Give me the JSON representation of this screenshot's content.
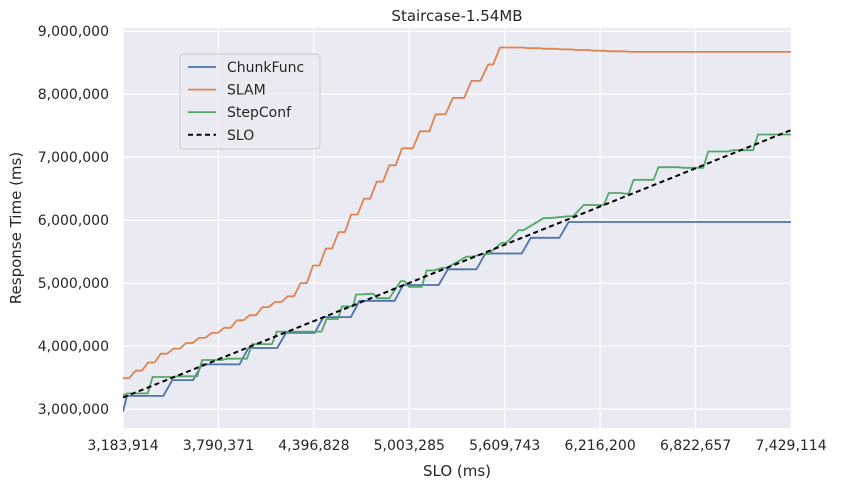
{
  "chart_data": {
    "type": "line",
    "title": "Staircase-1.54MB",
    "xlabel": "SLO (ms)",
    "ylabel": "Response Time (ms)",
    "xlim": [
      3183914,
      7429114
    ],
    "ylim": [
      2700000,
      9050000
    ],
    "x_ticks": [
      3183914,
      3790371,
      4396828,
      5003285,
      5609743,
      6216200,
      6822657,
      7429114
    ],
    "x_tick_labels": [
      "3,183,914",
      "3,790,371",
      "4,396,828",
      "5,003,285",
      "5,609,743",
      "6,216,200",
      "6,822,657",
      "7,429,114"
    ],
    "y_ticks": [
      3000000,
      4000000,
      5000000,
      6000000,
      7000000,
      8000000,
      9000000
    ],
    "y_tick_labels": [
      "3,000,000",
      "4,000,000",
      "5,000,000",
      "6,000,000",
      "7,000,000",
      "8,000,000",
      "9,000,000"
    ],
    "grid": true,
    "legend_position": "upper-left",
    "series": [
      {
        "name": "ChunkFunc",
        "color": "#4c72b0",
        "style": "solid",
        "x": [
          3183914,
          3209000,
          3440000,
          3497000,
          3630000,
          3686000,
          3924000,
          3981000,
          4163000,
          4220000,
          4402000,
          4457000,
          4632000,
          4687000,
          4910000,
          4964000,
          5190000,
          5248000,
          5430000,
          5487000,
          5718000,
          5775000,
          5957000,
          6016000,
          7429114
        ],
        "y": [
          2960000,
          3210000,
          3210000,
          3460000,
          3460000,
          3710000,
          3710000,
          3970000,
          3970000,
          4210000,
          4210000,
          4460000,
          4460000,
          4720000,
          4720000,
          4970000,
          4970000,
          5220000,
          5220000,
          5470000,
          5470000,
          5720000,
          5720000,
          5970000,
          5970000
        ]
      },
      {
        "name": "SLAM",
        "color": "#dd8452",
        "style": "solid",
        "x": [
          3183914,
          3223000,
          3264000,
          3304000,
          3344000,
          3384000,
          3424000,
          3465000,
          3505000,
          3545000,
          3586000,
          3626000,
          3666000,
          3707000,
          3747000,
          3787000,
          3828000,
          3868000,
          3908000,
          3949000,
          3989000,
          4029000,
          4070000,
          4110000,
          4150000,
          4191000,
          4231000,
          4271000,
          4312000,
          4352000,
          4392000,
          4433000,
          4473000,
          4513000,
          4554000,
          4594000,
          4634000,
          4675000,
          4715000,
          4755000,
          4796000,
          4836000,
          4876000,
          4917000,
          4957000,
          5026000,
          5070000,
          5131000,
          5171000,
          5234000,
          5280000,
          5352000,
          5398000,
          5455000,
          5505000,
          5536000,
          5580000,
          5617000,
          5661000,
          5721000,
          5760000,
          5827000,
          5871000,
          5929000,
          5971000,
          6029000,
          6074000,
          6134000,
          6177000,
          6234000,
          6279000,
          6325000,
          6369000,
          6412000,
          6457000,
          6515000,
          6541000,
          6594000,
          6622000,
          6644000,
          6701000,
          6792000,
          6906000,
          7012000,
          7127000,
          7210000,
          7307000,
          7429114
        ],
        "y": [
          3490000,
          3490000,
          3610000,
          3610000,
          3740000,
          3740000,
          3880000,
          3880000,
          3960000,
          3960000,
          4050000,
          4050000,
          4130000,
          4130000,
          4210000,
          4210000,
          4290000,
          4290000,
          4410000,
          4410000,
          4490000,
          4490000,
          4620000,
          4620000,
          4700000,
          4700000,
          4790000,
          4790000,
          5000000,
          5000000,
          5280000,
          5280000,
          5550000,
          5550000,
          5810000,
          5810000,
          6090000,
          6090000,
          6340000,
          6340000,
          6610000,
          6610000,
          6870000,
          6870000,
          7140000,
          7140000,
          7410000,
          7410000,
          7680000,
          7680000,
          7940000,
          7940000,
          8210000,
          8210000,
          8470000,
          8470000,
          8740000,
          8740000,
          8740000,
          8740000,
          8730000,
          8730000,
          8720000,
          8720000,
          8710000,
          8710000,
          8700000,
          8700000,
          8690000,
          8690000,
          8680000,
          8680000,
          8680000,
          8670000,
          8670000,
          8670000,
          8670000,
          8670000,
          8670000,
          8670000,
          8670000,
          8670000,
          8670000,
          8670000,
          8670000,
          8670000,
          8670000,
          8670000
        ]
      },
      {
        "name": "StepConf",
        "color": "#55a868",
        "style": "solid",
        "x": [
          3183914,
          3213000,
          3341000,
          3372000,
          3498000,
          3529000,
          3656000,
          3687000,
          3814000,
          3845000,
          3972000,
          4003000,
          4130000,
          4161000,
          4288000,
          4319000,
          4446000,
          4477000,
          4550000,
          4575000,
          4646000,
          4665000,
          4686000,
          4759000,
          4776000,
          4797000,
          4876000,
          4949000,
          4972000,
          5003000,
          5082000,
          5113000,
          5160000,
          5208000,
          5239000,
          5366000,
          5397000,
          5474000,
          5505000,
          5590000,
          5621000,
          5698000,
          5729000,
          5856000,
          5887000,
          6014000,
          6045000,
          6112000,
          6133000,
          6161000,
          6240000,
          6271000,
          6350000,
          6374000,
          6398000,
          6429000,
          6556000,
          6587000,
          6714000,
          6745000,
          6872000,
          6903000,
          7030000,
          7061000,
          7188000,
          7219000,
          7346000,
          7429114
        ],
        "y": [
          3220000,
          3250000,
          3250000,
          3510000,
          3510000,
          3520000,
          3520000,
          3780000,
          3780000,
          3800000,
          3800000,
          4030000,
          4030000,
          4230000,
          4230000,
          4230000,
          4230000,
          4430000,
          4430000,
          4630000,
          4630000,
          4820000,
          4820000,
          4830000,
          4830000,
          4760000,
          4760000,
          5030000,
          5030000,
          4940000,
          4940000,
          5200000,
          5200000,
          5240000,
          5240000,
          5420000,
          5420000,
          5460000,
          5460000,
          5640000,
          5640000,
          5840000,
          5840000,
          6030000,
          6030000,
          6060000,
          6060000,
          6240000,
          6240000,
          6240000,
          6240000,
          6430000,
          6430000,
          6420000,
          6420000,
          6640000,
          6640000,
          6840000,
          6840000,
          6830000,
          6830000,
          7090000,
          7090000,
          7110000,
          7110000,
          7360000,
          7360000,
          7360000
        ]
      },
      {
        "name": "SLO",
        "color": "#000000",
        "style": "dashed",
        "x": [
          3183914,
          7429114
        ],
        "y": [
          3183914,
          7429114
        ]
      }
    ]
  }
}
